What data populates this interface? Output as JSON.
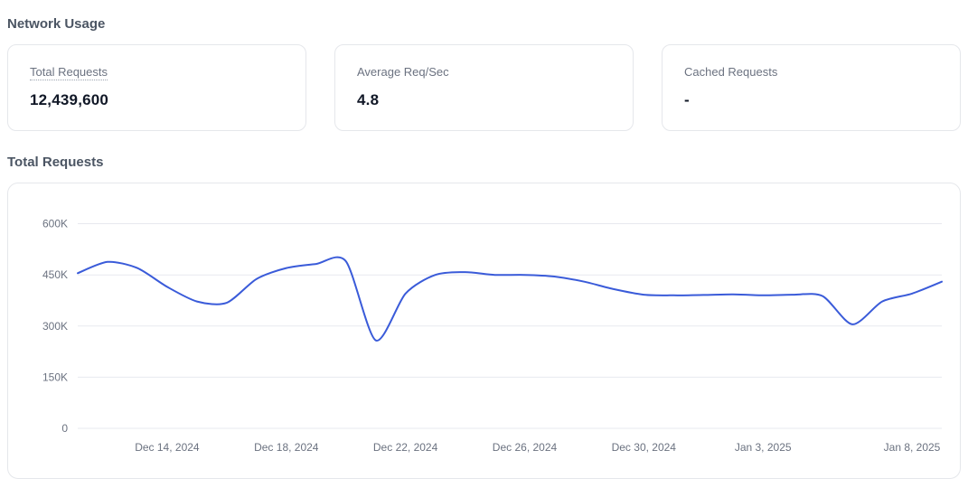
{
  "sections": {
    "network_usage": "Network Usage",
    "total_requests": "Total Requests"
  },
  "stats": [
    {
      "label": "Total Requests",
      "value": "12,439,600"
    },
    {
      "label": "Average Req/Sec",
      "value": "4.8"
    },
    {
      "label": "Cached Requests",
      "value": "-"
    }
  ],
  "chart_data": {
    "type": "line",
    "title": "Total Requests",
    "x": [
      "Dec 11, 2024",
      "Dec 12, 2024",
      "Dec 13, 2024",
      "Dec 14, 2024",
      "Dec 15, 2024",
      "Dec 16, 2024",
      "Dec 17, 2024",
      "Dec 18, 2024",
      "Dec 19, 2024",
      "Dec 20, 2024",
      "Dec 21, 2024",
      "Dec 22, 2024",
      "Dec 23, 2024",
      "Dec 24, 2024",
      "Dec 25, 2024",
      "Dec 26, 2024",
      "Dec 27, 2024",
      "Dec 28, 2024",
      "Dec 29, 2024",
      "Dec 30, 2024",
      "Dec 31, 2024",
      "Jan 1, 2025",
      "Jan 2, 2025",
      "Jan 3, 2025",
      "Jan 4, 2025",
      "Jan 5, 2025",
      "Jan 6, 2025",
      "Jan 7, 2025",
      "Jan 8, 2025",
      "Jan 9, 2025"
    ],
    "values": [
      455000,
      488000,
      470000,
      415000,
      372000,
      368000,
      438000,
      470000,
      482000,
      490000,
      258000,
      395000,
      450000,
      458000,
      450000,
      450000,
      445000,
      430000,
      408000,
      392000,
      390000,
      391000,
      393000,
      390000,
      392000,
      388000,
      305000,
      372000,
      395000,
      430000
    ],
    "x_ticks": [
      {
        "index": 3,
        "label": "Dec 14, 2024"
      },
      {
        "index": 7,
        "label": "Dec 18, 2024"
      },
      {
        "index": 11,
        "label": "Dec 22, 2024"
      },
      {
        "index": 15,
        "label": "Dec 26, 2024"
      },
      {
        "index": 19,
        "label": "Dec 30, 2024"
      },
      {
        "index": 23,
        "label": "Jan 3, 2025"
      },
      {
        "index": 28,
        "label": "Jan 8, 2025"
      }
    ],
    "y_ticks": [
      {
        "value": 0,
        "label": "0"
      },
      {
        "value": 150000,
        "label": "150K"
      },
      {
        "value": 300000,
        "label": "300K"
      },
      {
        "value": 450000,
        "label": "450K"
      },
      {
        "value": 600000,
        "label": "600K"
      }
    ],
    "ylim": [
      0,
      620000
    ],
    "grid": "horizontal",
    "legend": "none",
    "line_color": "#3a5bd9",
    "axis_text_color": "#6b7280",
    "grid_color": "#e7e9ef"
  }
}
